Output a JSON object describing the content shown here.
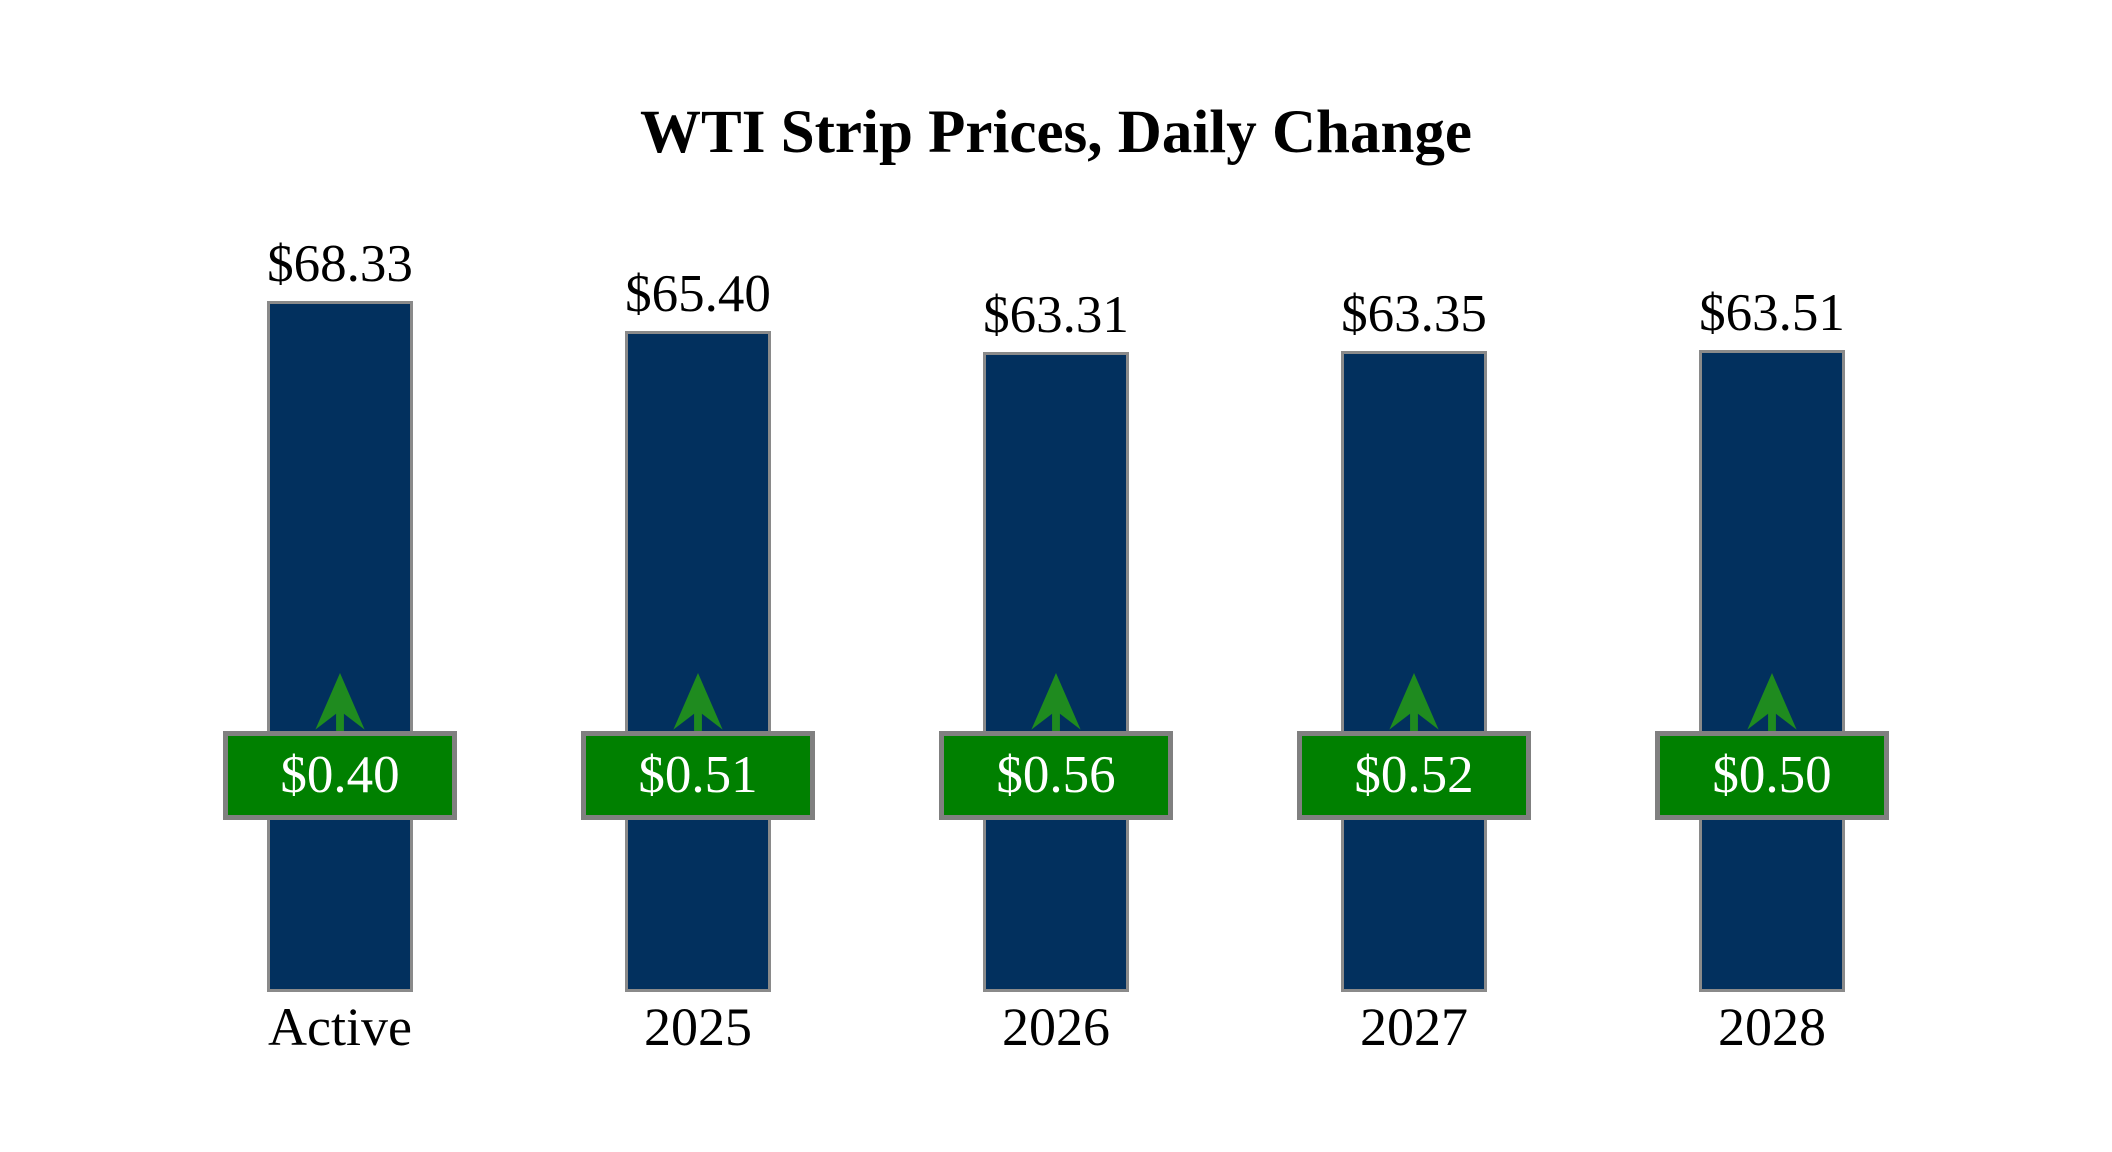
{
  "title": "WTI Strip Prices, Daily Change",
  "colors": {
    "background": "#ffffff",
    "title_text": "#000000",
    "bar_fill": "#02305e",
    "bar_border": "#8a8a8a",
    "badge_fill": "#008000",
    "badge_border": "#808080",
    "badge_text": "#ffffff",
    "arrow_green": "#1f8b1f",
    "label_text": "#000000"
  },
  "chart_data": {
    "type": "bar",
    "title": "WTI Strip Prices, Daily Change",
    "categories": [
      "Active",
      "2025",
      "2026",
      "2027",
      "2028"
    ],
    "series": [
      {
        "name": "Strip Price",
        "values": [
          68.33,
          65.4,
          63.31,
          63.35,
          63.51
        ],
        "labels": [
          "$68.33",
          "$65.40",
          "$63.31",
          "$63.35",
          "$63.51"
        ],
        "label_position": "above-bar"
      },
      {
        "name": "Daily Change",
        "values": [
          0.4,
          0.51,
          0.56,
          0.52,
          0.5
        ],
        "labels": [
          "$0.40",
          "$0.51",
          "$0.56",
          "$0.52",
          "$0.50"
        ],
        "direction": "up",
        "label_position": "mid-bar-badge"
      }
    ],
    "xlabel": "",
    "ylabel": "",
    "ylim": [
      0,
      70
    ],
    "grid": false,
    "legend": "none",
    "axes_visible": false
  }
}
